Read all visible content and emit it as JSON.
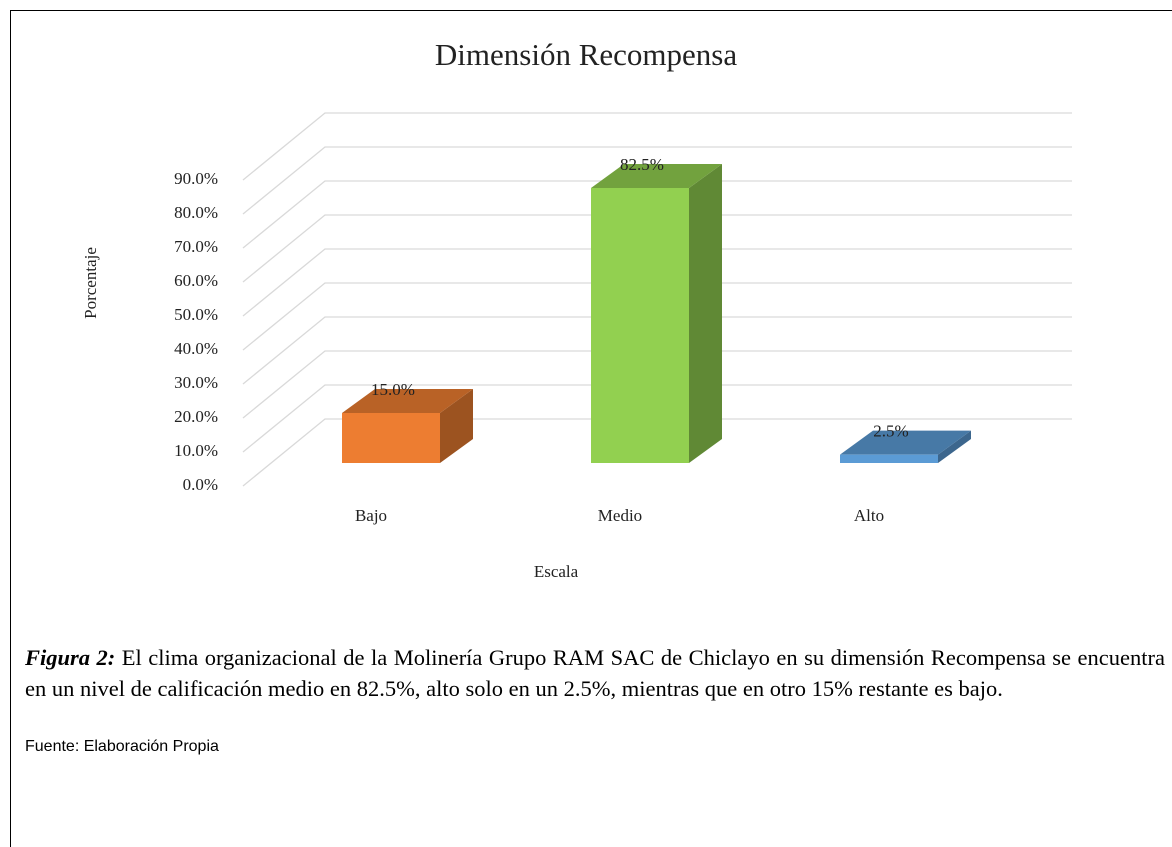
{
  "chart_data": {
    "type": "bar3d",
    "title": "Dimensión Recompensa",
    "categories": [
      "Bajo",
      "Medio",
      "Alto"
    ],
    "values": [
      15,
      82.5,
      2.5
    ],
    "value_labels": [
      "15.0%",
      "82.5%",
      "2.5%"
    ],
    "colors": [
      "#ED7D31",
      "#92D050",
      "#5B9BD5"
    ],
    "x_label": "Escala",
    "y_label": "Porcentaje",
    "ylim": [
      0,
      90
    ],
    "yticks": [
      {
        "value": 0,
        "label": "0.0%"
      },
      {
        "value": 10,
        "label": "10.0%"
      },
      {
        "value": 20,
        "label": "20.0%"
      },
      {
        "value": 30,
        "label": "30.0%"
      },
      {
        "value": 40,
        "label": "40.0%"
      },
      {
        "value": 50,
        "label": "50.0%"
      },
      {
        "value": 60,
        "label": "60.0%"
      },
      {
        "value": 70,
        "label": "70.0%"
      },
      {
        "value": 80,
        "label": "80.0%"
      },
      {
        "value": 90,
        "label": "90.0%"
      }
    ],
    "grid": true
  },
  "caption": {
    "label": "Figura 2:",
    "text": " El clima organizacional de la Molinería Grupo RAM SAC de Chiclayo en su dimensión Recompensa se encuentra en un nivel de calificación medio en 82.5%, alto solo en un 2.5%, mientras que en otro 15% restante es bajo.",
    "source": "Fuente: Elaboración Propia"
  }
}
